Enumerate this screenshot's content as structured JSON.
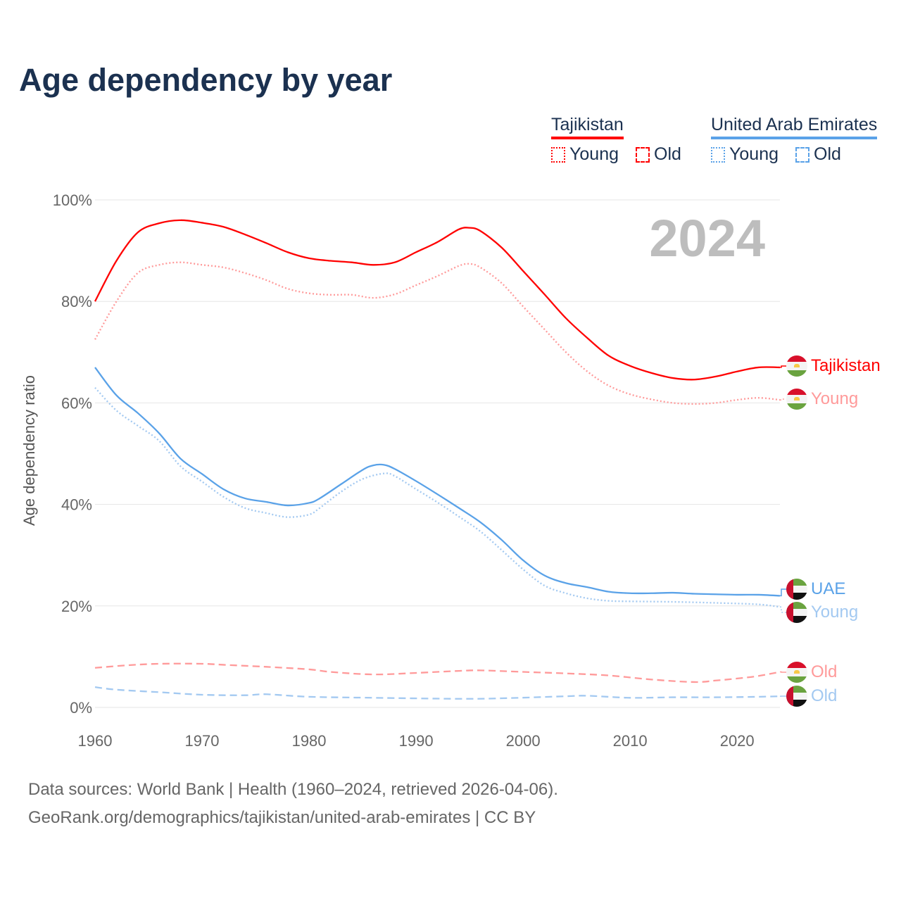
{
  "chart_data": {
    "type": "line",
    "title": "Age dependency by year",
    "ylabel": "Age dependency ratio",
    "xlabel": "",
    "xlim": [
      1960,
      2024
    ],
    "ylim": [
      0,
      100
    ],
    "x_ticks": [
      "1960",
      "1970",
      "1980",
      "1990",
      "2000",
      "2010",
      "2020"
    ],
    "y_ticks": [
      "0%",
      "20%",
      "40%",
      "60%",
      "80%",
      "100%"
    ],
    "year_label": "2024",
    "legend": {
      "groups": [
        {
          "name": "Tajikistan",
          "color": "#ff0000",
          "items": [
            "Young",
            "Old"
          ]
        },
        {
          "name": "United Arab Emirates",
          "color": "#5aa2e8",
          "items": [
            "Young",
            "Old"
          ]
        }
      ],
      "placement": "top-right"
    },
    "series": [
      {
        "name": "Tajikistan",
        "label": "Tajikistan",
        "country": "tj",
        "style": "solid",
        "color": "#ff0000",
        "x": [
          1960,
          1962,
          1964,
          1966,
          1968,
          1970,
          1972,
          1974,
          1976,
          1978,
          1980,
          1982,
          1984,
          1986,
          1988,
          1990,
          1992,
          1994,
          1995,
          1996,
          1998,
          2000,
          2002,
          2004,
          2006,
          2008,
          2010,
          2012,
          2014,
          2016,
          2018,
          2020,
          2022,
          2024
        ],
        "y": [
          80,
          88,
          93.6,
          95.4,
          96,
          95.5,
          94.7,
          93.2,
          91.5,
          89.7,
          88.5,
          88,
          87.7,
          87.2,
          87.7,
          89.7,
          91.7,
          94.2,
          94.5,
          93.9,
          90.6,
          86,
          81.4,
          76.7,
          72.8,
          69.3,
          67.3,
          65.9,
          64.9,
          64.6,
          65.2,
          66.2,
          67,
          67
        ]
      },
      {
        "name": "Tajikistan Young",
        "label": "Young",
        "country": "tj",
        "style": "dotted",
        "color": "#ff9a9a",
        "x": [
          1960,
          1962,
          1964,
          1966,
          1968,
          1970,
          1972,
          1974,
          1976,
          1978,
          1980,
          1982,
          1984,
          1986,
          1988,
          1990,
          1992,
          1994,
          1995,
          1996,
          1998,
          2000,
          2002,
          2004,
          2006,
          2008,
          2010,
          2012,
          2014,
          2016,
          2018,
          2020,
          2022,
          2024
        ],
        "y": [
          72.5,
          80,
          85.6,
          87.2,
          87.7,
          87.2,
          86.7,
          85.6,
          84.2,
          82.5,
          81.6,
          81.3,
          81.3,
          80.7,
          81.4,
          83.2,
          85,
          87,
          87.4,
          86.7,
          83.6,
          79,
          74.5,
          70,
          66.2,
          63.4,
          61.7,
          60.7,
          60,
          59.8,
          60,
          60.6,
          61,
          60.6
        ]
      },
      {
        "name": "Tajikistan Old",
        "label": "Old",
        "country": "tj",
        "style": "dashed",
        "color": "#ff9a9a",
        "x": [
          1960,
          1963,
          1966,
          1970,
          1972,
          1976,
          1980,
          1982,
          1986,
          1990,
          1994,
          1996,
          2000,
          2004,
          2008,
          2012,
          2016,
          2018,
          2020,
          2022,
          2024
        ],
        "y": [
          7.8,
          8.3,
          8.6,
          8.6,
          8.4,
          8,
          7.5,
          7,
          6.5,
          6.8,
          7.2,
          7.3,
          7,
          6.7,
          6.3,
          5.5,
          5,
          5.3,
          5.7,
          6.2,
          7
        ]
      },
      {
        "name": "UAE",
        "label": "UAE",
        "country": "ae",
        "style": "solid",
        "color": "#5aa2e8",
        "x": [
          1960,
          1962,
          1964,
          1966,
          1968,
          1970,
          1972,
          1974,
          1976,
          1978,
          1980,
          1981,
          1983,
          1985,
          1986,
          1987,
          1988,
          1990,
          1992,
          1994,
          1996,
          1998,
          2000,
          2002,
          2004,
          2006,
          2008,
          2010,
          2012,
          2014,
          2016,
          2018,
          2020,
          2022,
          2024
        ],
        "y": [
          67,
          61.5,
          58,
          54,
          49,
          46,
          43,
          41.2,
          40.5,
          39.8,
          40.3,
          41.2,
          44,
          46.8,
          47.7,
          47.8,
          47,
          44.6,
          42,
          39.3,
          36.5,
          33,
          29,
          26,
          24.5,
          23.7,
          22.8,
          22.5,
          22.5,
          22.6,
          22.4,
          22.3,
          22.2,
          22.2,
          22
        ]
      },
      {
        "name": "UAE Young",
        "label": "Young",
        "country": "ae",
        "style": "dotted",
        "color": "#a3c9f1",
        "x": [
          1960,
          1962,
          1964,
          1966,
          1968,
          1970,
          1972,
          1974,
          1976,
          1978,
          1980,
          1981,
          1983,
          1985,
          1987,
          1988,
          1990,
          1992,
          1994,
          1996,
          1998,
          2000,
          2002,
          2004,
          2006,
          2008,
          2010,
          2014,
          2018,
          2022,
          2024
        ],
        "y": [
          63,
          58.5,
          55.5,
          52.5,
          47.5,
          44.5,
          41.5,
          39.3,
          38.3,
          37.5,
          38,
          39.3,
          42.5,
          45,
          46.1,
          45.6,
          43,
          40.4,
          37.6,
          34.7,
          31,
          27.2,
          24,
          22.5,
          21.5,
          21,
          20.9,
          20.8,
          20.6,
          20.3,
          19.8
        ]
      },
      {
        "name": "UAE Old",
        "label": "Old",
        "country": "ae",
        "style": "dashed",
        "color": "#a3c9f1",
        "x": [
          1960,
          1962,
          1966,
          1970,
          1974,
          1976,
          1980,
          1986,
          1994,
          1998,
          2004,
          2006,
          2010,
          2014,
          2018,
          2022,
          2024
        ],
        "y": [
          4,
          3.5,
          3,
          2.5,
          2.4,
          2.6,
          2.1,
          1.9,
          1.7,
          1.8,
          2.2,
          2.3,
          1.9,
          2,
          2,
          2.1,
          2.2
        ]
      }
    ]
  },
  "footer": {
    "line1": "Data sources: World Bank | Health (1960–2024, retrieved 2026-04-06).",
    "line2": "GeoRank.org/demographics/tajikistan/united-arab-emirates | CC BY"
  }
}
